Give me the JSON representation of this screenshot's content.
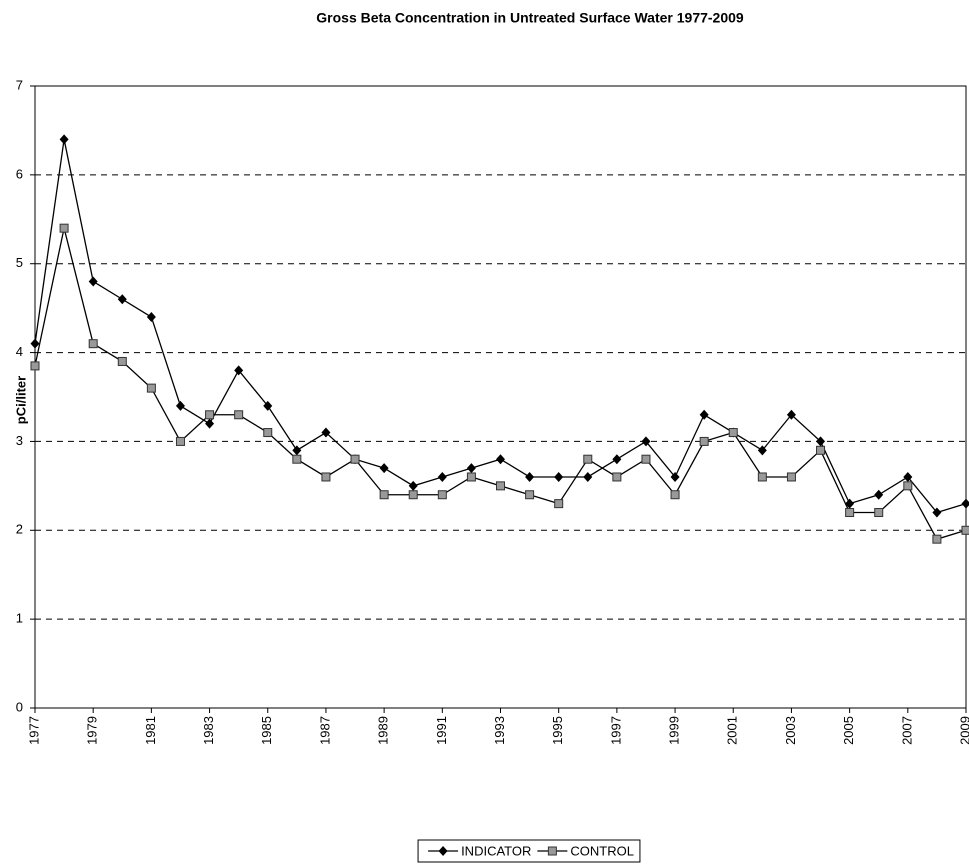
{
  "chart_data": {
    "type": "line",
    "title": "Gross Beta Concentration in Untreated Surface Water 1977-2009",
    "y_label": "pCi/liter",
    "x": [
      1977,
      1978,
      1979,
      1980,
      1981,
      1982,
      1983,
      1984,
      1985,
      1986,
      1987,
      1988,
      1989,
      1990,
      1991,
      1992,
      1993,
      1994,
      1995,
      1996,
      1997,
      1998,
      1999,
      2000,
      2001,
      2002,
      2003,
      2004,
      2005,
      2006,
      2007,
      2008,
      2009
    ],
    "xlim": [
      1977,
      2009
    ],
    "xticks": [
      1977,
      1979,
      1981,
      1983,
      1985,
      1987,
      1989,
      1991,
      1993,
      1995,
      1997,
      1999,
      2001,
      2003,
      2005,
      2007,
      2009
    ],
    "ylim": [
      0,
      7
    ],
    "yticks": [
      0,
      1,
      2,
      3,
      4,
      5,
      6,
      7
    ],
    "grid": true,
    "legend": "bottom",
    "series": [
      {
        "name": "INDICATOR",
        "color": "#000000",
        "marker": "diamond",
        "values": [
          4.1,
          6.4,
          4.8,
          4.6,
          4.4,
          3.4,
          3.2,
          3.8,
          3.4,
          2.9,
          3.1,
          2.8,
          2.7,
          2.5,
          2.6,
          2.7,
          2.8,
          2.6,
          2.6,
          2.6,
          2.8,
          3.0,
          2.6,
          3.3,
          3.1,
          2.9,
          3.3,
          3.0,
          2.3,
          2.4,
          2.6,
          2.2,
          2.3
        ]
      },
      {
        "name": "CONTROL",
        "color": "#999999",
        "marker": "square",
        "values": [
          3.85,
          5.4,
          4.1,
          3.9,
          3.6,
          3.0,
          3.3,
          3.3,
          3.1,
          2.8,
          2.6,
          2.8,
          2.4,
          2.4,
          2.4,
          2.6,
          2.5,
          2.4,
          2.3,
          2.8,
          2.6,
          2.8,
          2.4,
          3.0,
          3.1,
          2.6,
          2.6,
          2.9,
          2.2,
          2.2,
          2.5,
          1.9,
          2.0
        ]
      }
    ]
  }
}
